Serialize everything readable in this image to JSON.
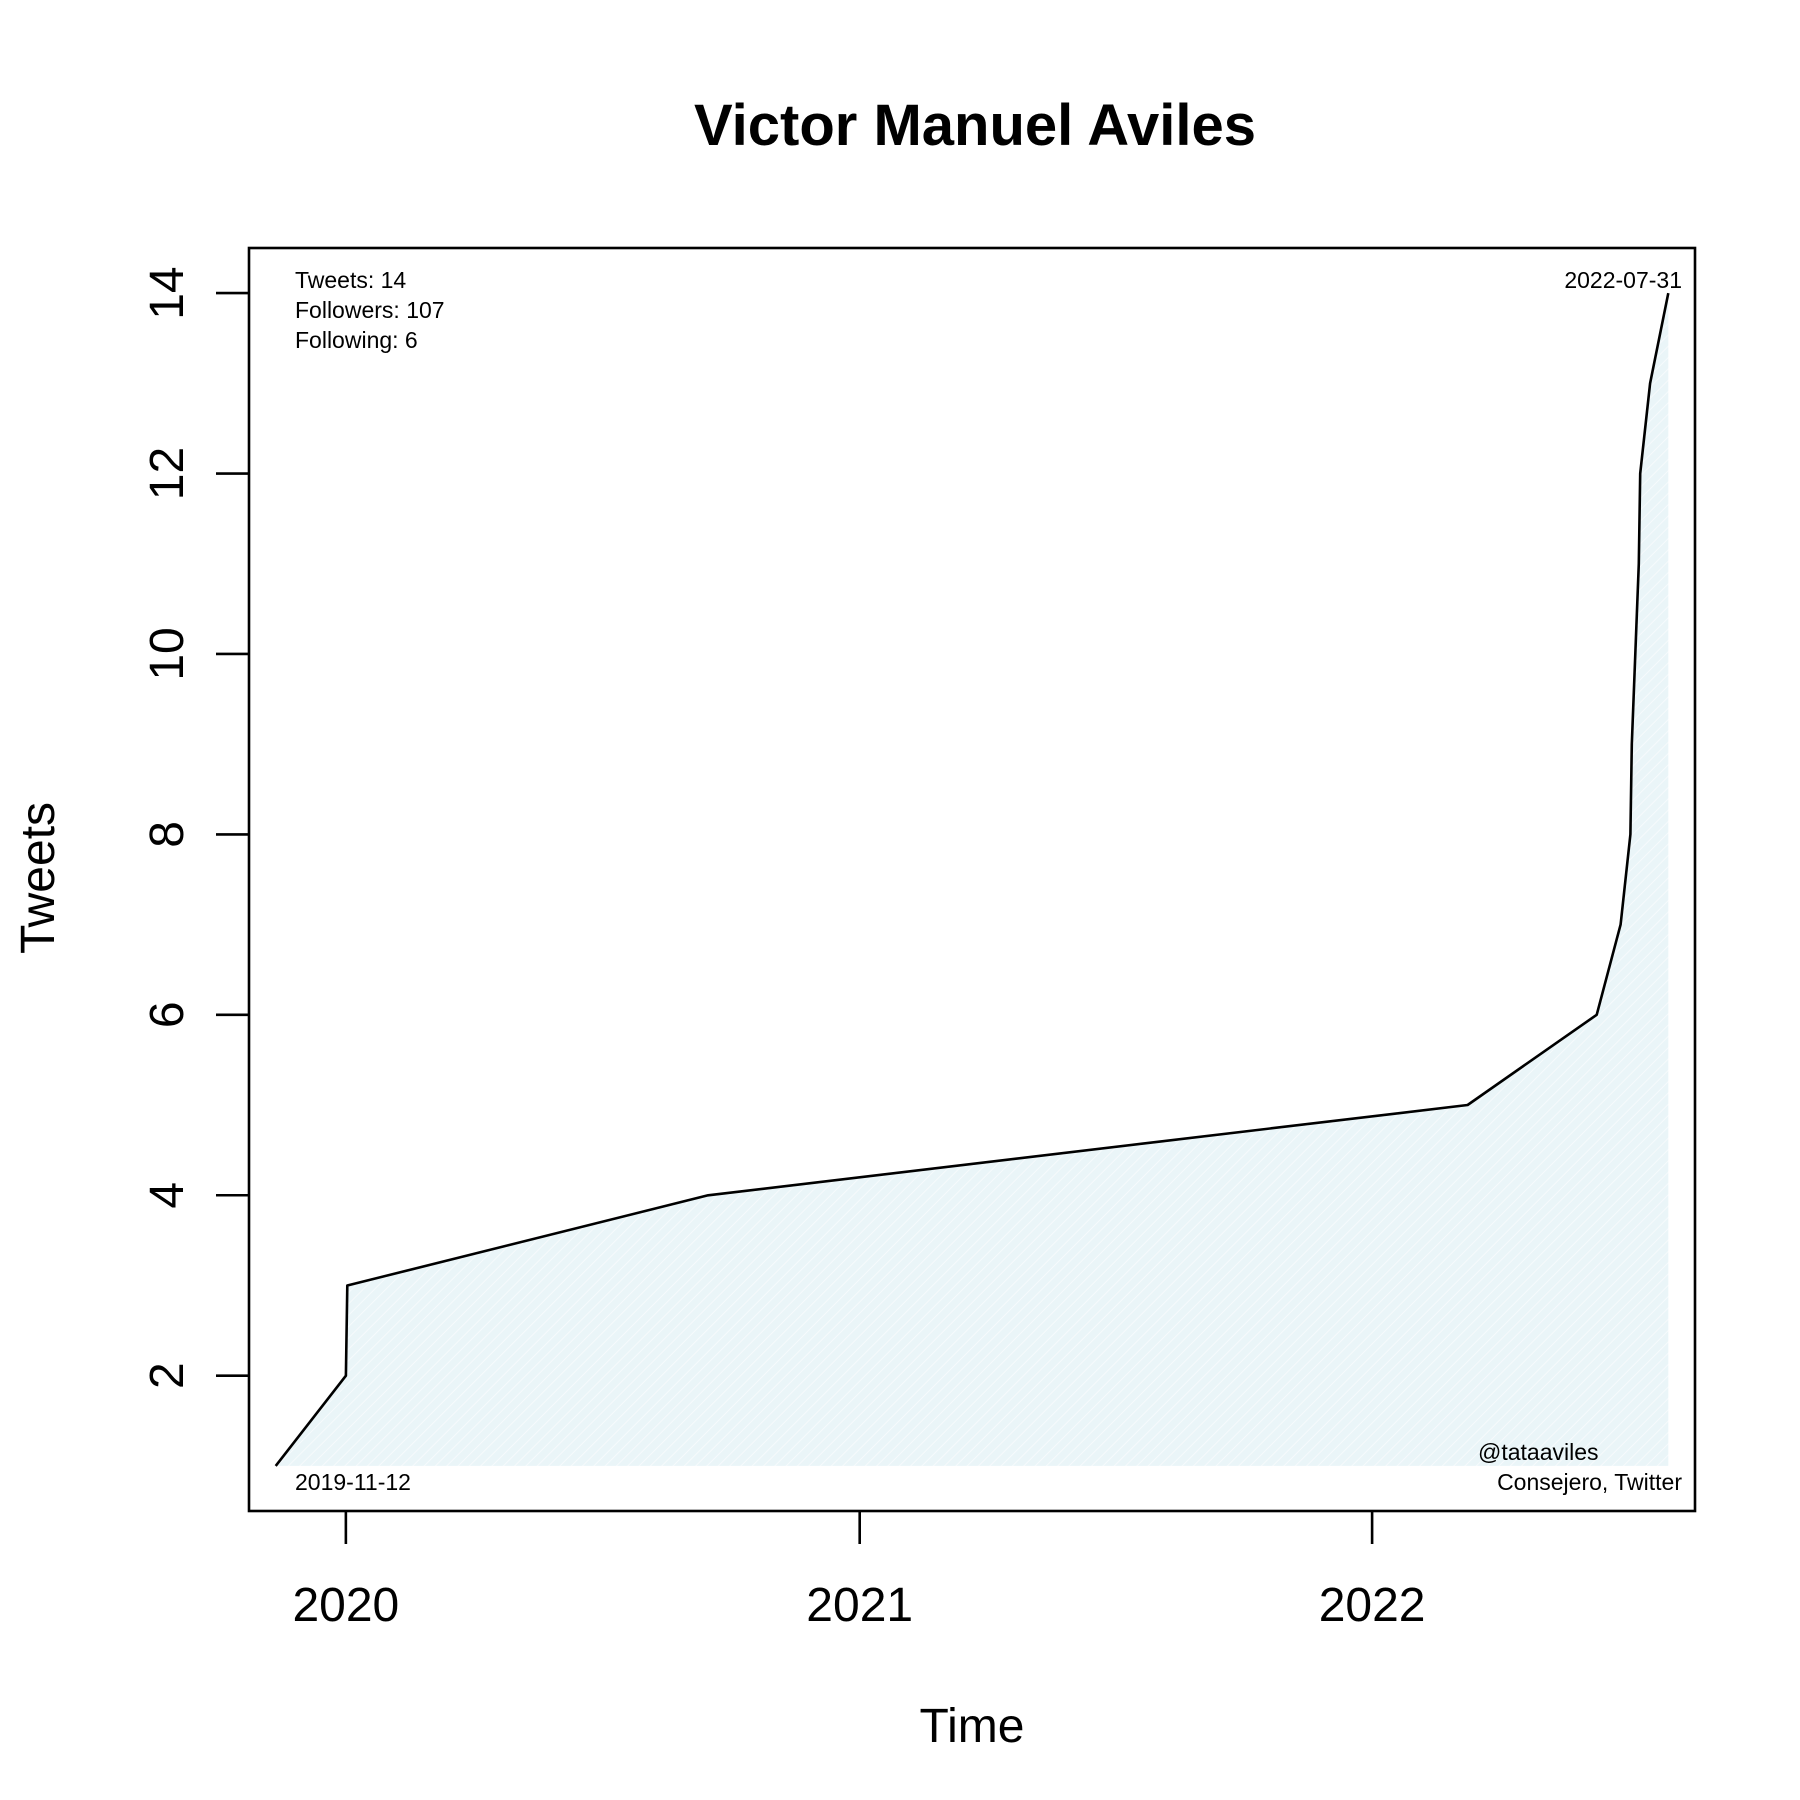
{
  "chart_data": {
    "type": "area",
    "title": "Victor Manuel Aviles",
    "xlabel": "Time",
    "ylabel": "Tweets",
    "x_axis": "date",
    "xlim": [
      "2019-10-24",
      "2022-08-19"
    ],
    "ylim": [
      0.5,
      14.5
    ],
    "x_ticks": [
      {
        "date": "2020-01-01",
        "label": "2020"
      },
      {
        "date": "2021-01-01",
        "label": "2021"
      },
      {
        "date": "2022-01-01",
        "label": "2022"
      }
    ],
    "y_ticks": [
      2,
      4,
      6,
      8,
      10,
      12,
      14
    ],
    "grid": false,
    "series": [
      {
        "fill_color": "#eaf5f8",
        "line_color": "#000000",
        "points": [
          {
            "x": "2019-11-12",
            "y": 1
          },
          {
            "x": "2020-01-01",
            "y": 2
          },
          {
            "x": "2020-01-02",
            "y": 3
          },
          {
            "x": "2020-09-15",
            "y": 4
          },
          {
            "x": "2022-03-10",
            "y": 5
          },
          {
            "x": "2022-06-10",
            "y": 6
          },
          {
            "x": "2022-06-27",
            "y": 7
          },
          {
            "x": "2022-07-04",
            "y": 8
          },
          {
            "x": "2022-07-05",
            "y": 9
          },
          {
            "x": "2022-07-10",
            "y": 11
          },
          {
            "x": "2022-07-11",
            "y": 12
          },
          {
            "x": "2022-07-18",
            "y": 13
          },
          {
            "x": "2022-07-31",
            "y": 14
          }
        ]
      }
    ],
    "annotations": {
      "stats": [
        "Tweets: 14",
        "Followers: 107",
        "Following: 6"
      ],
      "start_date_label": "2019-11-12",
      "end_date_label": "2022-07-31",
      "handle": "@tataaviles",
      "role": "Consejero, Twitter"
    }
  }
}
